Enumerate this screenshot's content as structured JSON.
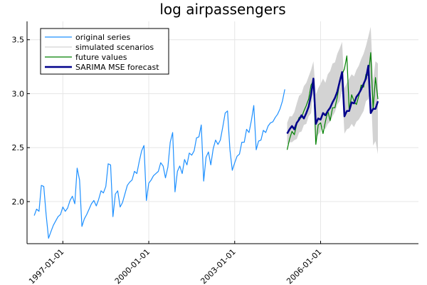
{
  "chart_data": {
    "type": "line",
    "title": "log airpassengers",
    "xlabel": "",
    "ylabel": "",
    "x_range": [
      "1995-10-01",
      "2009-06-01"
    ],
    "xlim_label": "dates",
    "ylim": [
      1.61,
      3.67
    ],
    "x_tick_labels": [
      "1997-01-01",
      "2000-01-01",
      "2003-01-01",
      "2006-01-01"
    ],
    "y_tick_labels": [
      "2.0",
      "2.5",
      "3.0",
      "3.5"
    ],
    "grid": true,
    "legend_position": "top-left",
    "colors": {
      "original": "#1E90FF",
      "scenarios": "#D3D3D3",
      "future": "#008000",
      "forecast": "#00008B"
    },
    "series": [
      {
        "name": "original series",
        "x_start": "1996-01-01",
        "values": [
          1.87,
          1.93,
          1.91,
          2.15,
          2.14,
          1.88,
          1.66,
          1.72,
          1.78,
          1.82,
          1.86,
          1.88,
          1.95,
          1.91,
          1.94,
          2.01,
          2.05,
          1.98,
          2.31,
          2.2,
          1.77,
          1.84,
          1.88,
          1.93,
          1.98,
          2.01,
          1.96,
          2.02,
          2.1,
          2.08,
          2.14,
          2.35,
          2.34,
          1.86,
          2.07,
          2.1,
          1.95,
          1.99,
          2.07,
          2.15,
          2.18,
          2.2,
          2.28,
          2.26,
          2.37,
          2.47,
          2.52,
          2.01,
          2.17,
          2.2,
          2.24,
          2.26,
          2.28,
          2.36,
          2.33,
          2.22,
          2.32,
          2.55,
          2.64,
          2.09,
          2.28,
          2.33,
          2.26,
          2.39,
          2.34,
          2.45,
          2.43,
          2.47,
          2.59,
          2.6,
          2.71,
          2.19,
          2.41,
          2.46,
          2.34,
          2.49,
          2.57,
          2.53,
          2.57,
          2.69,
          2.82,
          2.84,
          2.48,
          2.29,
          2.36,
          2.42,
          2.44,
          2.55,
          2.55,
          2.67,
          2.64,
          2.75,
          2.89,
          2.48,
          2.56,
          2.57,
          2.66,
          2.64,
          2.7,
          2.73,
          2.74,
          2.78,
          2.81,
          2.86,
          2.93,
          3.04
        ]
      },
      {
        "name": "simulated scenarios",
        "x_start": "2004-11-01",
        "lower": [
          2.53,
          2.55,
          2.55,
          2.57,
          2.58,
          2.64,
          2.65,
          2.71,
          2.72,
          2.79,
          2.82,
          3.03,
          2.58,
          2.62,
          2.65,
          2.69,
          2.67,
          2.72,
          2.74,
          2.79,
          2.83,
          2.9,
          2.93,
          3.03,
          2.63,
          2.67,
          2.68,
          2.72,
          2.69,
          2.74,
          2.76,
          2.8,
          2.84,
          2.93,
          2.95,
          3.06,
          2.52,
          2.56,
          2.44
        ],
        "upper": [
          2.73,
          2.79,
          2.79,
          2.83,
          2.91,
          2.98,
          3.0,
          3.07,
          3.1,
          3.16,
          3.22,
          3.3,
          2.99,
          3.05,
          3.09,
          3.14,
          3.1,
          3.18,
          3.21,
          3.28,
          3.29,
          3.37,
          3.42,
          3.48,
          3.05,
          3.1,
          3.14,
          3.18,
          3.16,
          3.22,
          3.26,
          3.32,
          3.37,
          3.44,
          3.53,
          3.62,
          3.12,
          3.3,
          3.28
        ]
      },
      {
        "name": "future values",
        "x_start": "2004-11-01",
        "values": [
          2.48,
          2.58,
          2.65,
          2.62,
          2.72,
          2.78,
          2.78,
          2.84,
          2.89,
          2.95,
          3.08,
          3.12,
          2.53,
          2.71,
          2.73,
          2.63,
          2.74,
          2.84,
          2.75,
          2.87,
          2.87,
          2.97,
          3.11,
          3.18,
          3.23,
          3.35,
          2.84,
          2.99,
          2.93,
          2.9,
          2.98,
          3.08,
          3.06,
          3.18,
          3.17,
          3.38,
          2.86,
          3.15,
          2.95
        ]
      },
      {
        "name": "SARIMA MSE forecast",
        "x_start": "2004-11-01",
        "values": [
          2.63,
          2.67,
          2.7,
          2.67,
          2.73,
          2.76,
          2.8,
          2.77,
          2.82,
          2.88,
          2.99,
          3.14,
          2.72,
          2.77,
          2.76,
          2.82,
          2.8,
          2.84,
          2.87,
          2.92,
          2.96,
          3.02,
          3.11,
          3.2,
          2.79,
          2.84,
          2.84,
          2.92,
          2.91,
          2.97,
          3.0,
          3.04,
          3.09,
          3.14,
          3.26,
          2.82,
          2.86,
          2.86,
          2.93
        ]
      }
    ]
  }
}
